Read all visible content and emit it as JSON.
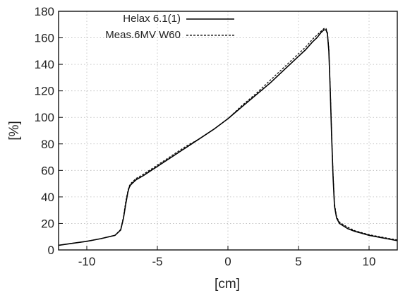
{
  "chart_data": {
    "type": "line",
    "title": "",
    "xlabel": "[cm]",
    "ylabel": "[%]",
    "xlim": [
      -12,
      12
    ],
    "ylim": [
      0,
      180
    ],
    "xticks": [
      -10,
      -5,
      0,
      5,
      10
    ],
    "yticks": [
      0,
      20,
      40,
      60,
      80,
      100,
      120,
      140,
      160,
      180
    ],
    "grid": true,
    "legend_position": "top-center",
    "series": [
      {
        "name": "Helax 6.1(1)",
        "style": "solid",
        "color": "#000000",
        "x": [
          -12,
          -11,
          -10,
          -9,
          -8,
          -7.6,
          -7.4,
          -7.25,
          -7.1,
          -7.0,
          -6.9,
          -6.7,
          -6.5,
          -6,
          -5,
          -4,
          -3,
          -2,
          -1,
          0,
          1,
          2,
          3,
          4,
          5,
          5.5,
          6,
          6.3,
          6.6,
          6.8,
          6.95,
          7.05,
          7.15,
          7.25,
          7.35,
          7.45,
          7.55,
          7.7,
          7.9,
          8.5,
          9,
          10,
          11,
          12
        ],
        "y": [
          3.5,
          5,
          6.5,
          8.5,
          11,
          15,
          24,
          34,
          43,
          47,
          49,
          51,
          53,
          56,
          63,
          70,
          77,
          84,
          91,
          99,
          108,
          117,
          126,
          136,
          146,
          151,
          157,
          160,
          164,
          166,
          166,
          163,
          150,
          120,
          85,
          55,
          33,
          24,
          20,
          16,
          14,
          11,
          9,
          7
        ]
      },
      {
        "name": "Meas.6MV W60",
        "style": "dashed",
        "color": "#000000",
        "x": [
          -12,
          -11,
          -10,
          -9,
          -8,
          -7.6,
          -7.4,
          -7.25,
          -7.1,
          -7.0,
          -6.9,
          -6.7,
          -6.5,
          -6,
          -5,
          -4,
          -3,
          -2,
          -1,
          0,
          1,
          2,
          3,
          4,
          5,
          5.5,
          6,
          6.3,
          6.6,
          6.8,
          6.95,
          7.05,
          7.15,
          7.25,
          7.35,
          7.45,
          7.55,
          7.7,
          7.9,
          8.5,
          9,
          10,
          11,
          12
        ],
        "y": [
          3.5,
          5,
          6.5,
          8.5,
          11,
          15.5,
          25,
          36,
          44,
          48,
          50,
          52,
          54,
          57,
          64,
          71,
          78,
          84,
          91,
          99,
          109,
          118,
          128,
          138,
          148,
          153,
          159,
          162,
          165,
          167,
          167,
          164,
          152,
          122,
          87,
          57,
          35,
          25,
          21,
          17,
          14.5,
          11.5,
          9.5,
          7.5
        ]
      }
    ]
  }
}
